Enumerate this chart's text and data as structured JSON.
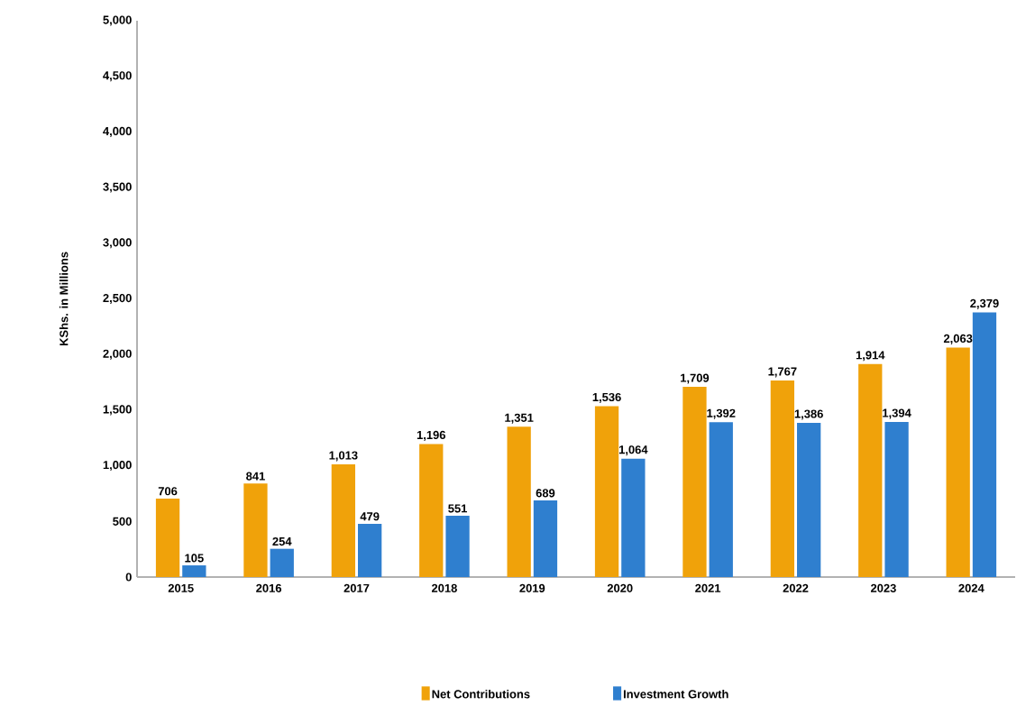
{
  "chart_data": {
    "type": "bar",
    "ylabel": "KShs. in Millions",
    "categories": [
      "2015",
      "2016",
      "2017",
      "2018",
      "2019",
      "2020",
      "2021",
      "2022",
      "2023",
      "2024"
    ],
    "series": [
      {
        "name": "Net Contributions",
        "color": "#f0a20a",
        "values": [
          706,
          841,
          1013,
          1196,
          1351,
          1536,
          1709,
          1767,
          1914,
          2063
        ],
        "value_labels": [
          "706",
          "841",
          "1,013",
          "1,196",
          "1,351",
          "1,536",
          "1,709",
          "1,767",
          "1,914",
          "2,063"
        ]
      },
      {
        "name": "Investment Growth",
        "color": "#2f7fcf",
        "values": [
          105,
          254,
          479,
          551,
          689,
          1064,
          1392,
          1386,
          1394,
          2379
        ],
        "value_labels": [
          "105",
          "254",
          "479",
          "551",
          "689",
          "1,064",
          "1,392",
          "1,386",
          "1,394",
          "2,379"
        ]
      }
    ],
    "ylim": [
      0,
      5000
    ],
    "yticks": [
      0,
      500,
      {
        "value": 1000,
        "label": "1,000"
      },
      {
        "value": 1500,
        "label": "1,500"
      },
      {
        "value": 2000,
        "label": "2,000"
      },
      {
        "value": 2500,
        "label": "2,500"
      },
      {
        "value": 3000,
        "label": "3,000"
      },
      {
        "value": 3500,
        "label": "3,500"
      },
      {
        "value": 4000,
        "label": "4,000"
      },
      {
        "value": 4500,
        "label": "4,500"
      },
      {
        "value": 5000,
        "label": "5,000"
      }
    ],
    "grid": false,
    "legend": "bottom"
  }
}
